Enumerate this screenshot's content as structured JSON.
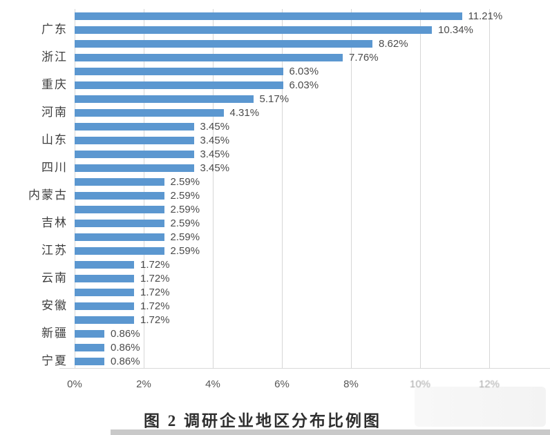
{
  "caption": "图 2  调研企业地区分布比例图",
  "colors": {
    "bar": "#5b97d0",
    "grid": "#d6d6d6",
    "value_text": "#4b4b4b",
    "category_text": "#3d3d3d",
    "tick_text": "#555555"
  },
  "chart_data": {
    "type": "bar",
    "orientation": "horizontal",
    "title": "图 2  调研企业地区分布比例图",
    "xlabel": "",
    "ylabel": "",
    "xlim": [
      0,
      12
    ],
    "x_ticks": [
      "0%",
      "2%",
      "4%",
      "6%",
      "8%",
      "10%",
      "12%"
    ],
    "x_tick_values": [
      0,
      2,
      4,
      6,
      8,
      10,
      12
    ],
    "grid": true,
    "legend": false,
    "note": "26 bars; category axis shows only every second label",
    "bars": [
      {
        "label": "",
        "value": 11.21,
        "value_label": "11.21%"
      },
      {
        "label": "广东",
        "value": 10.34,
        "value_label": "10.34%"
      },
      {
        "label": "",
        "value": 8.62,
        "value_label": "8.62%"
      },
      {
        "label": "浙江",
        "value": 7.76,
        "value_label": "7.76%"
      },
      {
        "label": "",
        "value": 6.03,
        "value_label": "6.03%"
      },
      {
        "label": "重庆",
        "value": 6.03,
        "value_label": "6.03%"
      },
      {
        "label": "",
        "value": 5.17,
        "value_label": "5.17%"
      },
      {
        "label": "河南",
        "value": 4.31,
        "value_label": "4.31%"
      },
      {
        "label": "",
        "value": 3.45,
        "value_label": "3.45%"
      },
      {
        "label": "山东",
        "value": 3.45,
        "value_label": "3.45%"
      },
      {
        "label": "",
        "value": 3.45,
        "value_label": "3.45%"
      },
      {
        "label": "四川",
        "value": 3.45,
        "value_label": "3.45%"
      },
      {
        "label": "",
        "value": 2.59,
        "value_label": "2.59%"
      },
      {
        "label": "内蒙古",
        "value": 2.59,
        "value_label": "2.59%"
      },
      {
        "label": "",
        "value": 2.59,
        "value_label": "2.59%"
      },
      {
        "label": "吉林",
        "value": 2.59,
        "value_label": "2.59%"
      },
      {
        "label": "",
        "value": 2.59,
        "value_label": "2.59%"
      },
      {
        "label": "江苏",
        "value": 2.59,
        "value_label": "2.59%"
      },
      {
        "label": "",
        "value": 1.72,
        "value_label": "1.72%"
      },
      {
        "label": "云南",
        "value": 1.72,
        "value_label": "1.72%"
      },
      {
        "label": "",
        "value": 1.72,
        "value_label": "1.72%"
      },
      {
        "label": "安徽",
        "value": 1.72,
        "value_label": "1.72%"
      },
      {
        "label": "",
        "value": 1.72,
        "value_label": "1.72%"
      },
      {
        "label": "新疆",
        "value": 0.86,
        "value_label": "0.86%"
      },
      {
        "label": "",
        "value": 0.86,
        "value_label": "0.86%"
      },
      {
        "label": "宁夏",
        "value": 0.86,
        "value_label": "0.86%"
      }
    ]
  }
}
